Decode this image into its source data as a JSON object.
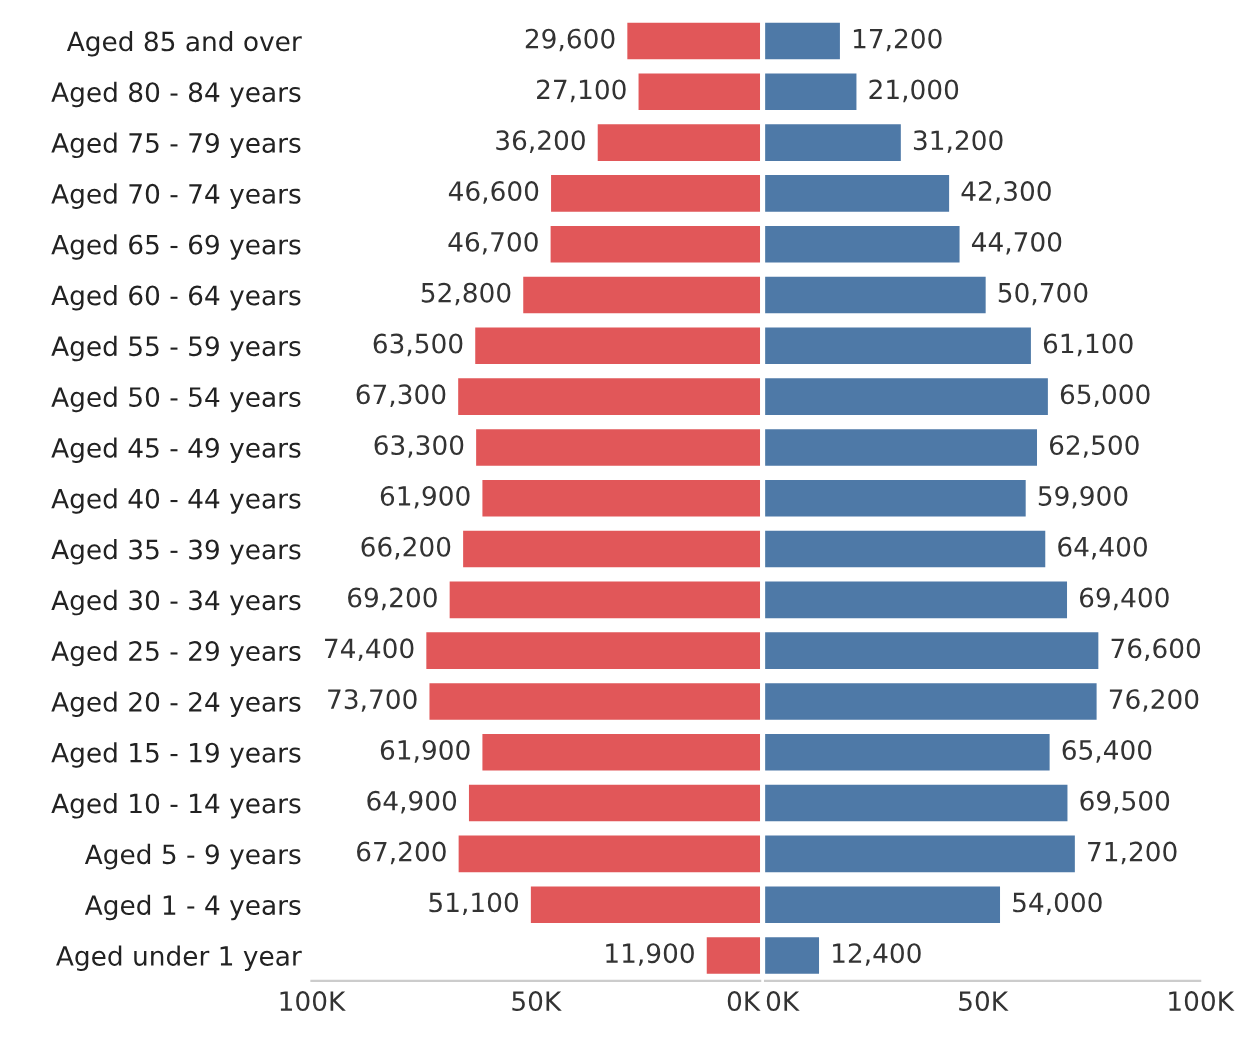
{
  "chart_data": [
    {
      "type": "bar",
      "orientation": "horizontal",
      "categories": [
        "Aged 85 and over",
        "Aged 80 - 84 years",
        "Aged 75 - 79 years",
        "Aged 70 - 74 years",
        "Aged 65 - 69 years",
        "Aged 60 - 64 years",
        "Aged 55 - 59 years",
        "Aged 50 - 54 years",
        "Aged 45 - 49 years",
        "Aged 40 - 44 years",
        "Aged 35 - 39 years",
        "Aged 30 - 34 years",
        "Aged 25 - 29 years",
        "Aged 20 - 24 years",
        "Aged 15 - 19 years",
        "Aged 10 - 14 years",
        "Aged 5 - 9 years",
        "Aged 1 - 4 years",
        "Aged under 1 year"
      ],
      "series": [
        {
          "color": "#e15759",
          "values": [
            29600,
            27100,
            36200,
            46600,
            46700,
            52800,
            63500,
            67300,
            63300,
            61900,
            66200,
            69200,
            74400,
            73700,
            61900,
            64900,
            67200,
            51100,
            11900
          ],
          "value_labels": [
            "29,600",
            "27,100",
            "36,200",
            "46,600",
            "46,700",
            "52,800",
            "63,500",
            "67,300",
            "63,300",
            "61,900",
            "66,200",
            "69,200",
            "74,400",
            "73,700",
            "61,900",
            "64,900",
            "67,200",
            "51,100",
            "11,900"
          ]
        }
      ],
      "xlim": [
        100000,
        0
      ],
      "xticks": [
        {
          "value": 100000,
          "label": "100K"
        },
        {
          "value": 50000,
          "label": "50K"
        },
        {
          "value": 0,
          "label": "0K"
        }
      ],
      "grid": false,
      "legend": false
    },
    {
      "type": "bar",
      "orientation": "horizontal",
      "tick_labels": "x",
      "series": [
        {
          "color": "#4e79a7",
          "values": [
            17200,
            21000,
            31200,
            42300,
            44700,
            50700,
            61100,
            65000,
            62500,
            59900,
            64400,
            69400,
            76600,
            76200,
            65400,
            69500,
            71200,
            54000,
            12400
          ],
          "value_labels": [
            "17,200",
            "21,000",
            "31,200",
            "42,300",
            "44,700",
            "50,700",
            "61,100",
            "65,000",
            "62,500",
            "59,900",
            "64,400",
            "69,400",
            "76,600",
            "76,200",
            "65,400",
            "69,500",
            "71,200",
            "54,000",
            "12,400"
          ]
        }
      ],
      "xlim": [
        0,
        100000
      ],
      "xticks": [
        {
          "value": 0,
          "label": "0K"
        },
        {
          "value": 50000,
          "label": "50K"
        },
        {
          "value": 100000,
          "label": "100K"
        }
      ],
      "grid": false,
      "legend": false
    }
  ]
}
